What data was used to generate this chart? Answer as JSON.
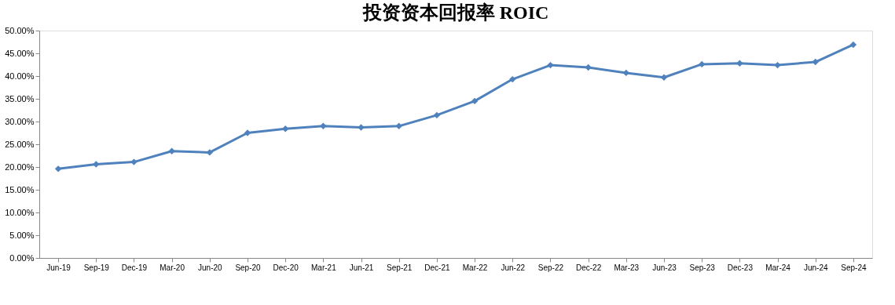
{
  "chart_data": {
    "type": "line",
    "title": "投资资本回报率 ROIC",
    "categories": [
      "Jun-19",
      "Sep-19",
      "Dec-19",
      "Mar-20",
      "Jun-20",
      "Sep-20",
      "Dec-20",
      "Mar-21",
      "Jun-21",
      "Sep-21",
      "Dec-21",
      "Mar-22",
      "Jun-22",
      "Sep-22",
      "Dec-22",
      "Mar-23",
      "Jun-23",
      "Sep-23",
      "Dec-23",
      "Mar-24",
      "Jun-24",
      "Sep-24"
    ],
    "series": [
      {
        "color": "#4f81bd",
        "values": [
          19.6,
          20.6,
          21.1,
          23.5,
          23.2,
          27.5,
          28.4,
          29.0,
          28.7,
          29.0,
          31.4,
          34.5,
          39.3,
          42.4,
          41.9,
          40.7,
          39.7,
          42.6,
          42.8,
          42.4,
          43.1,
          46.9
        ]
      }
    ],
    "ylim": [
      0,
      50
    ],
    "yticks": [
      {
        "value": 0,
        "label": "0.00%"
      },
      {
        "value": 5,
        "label": "5.00%"
      },
      {
        "value": 10,
        "label": "10.00%"
      },
      {
        "value": 15,
        "label": "15.00%"
      },
      {
        "value": 20,
        "label": "20.00%"
      },
      {
        "value": 25,
        "label": "25.00%"
      },
      {
        "value": 30,
        "label": "30.00%"
      },
      {
        "value": 35,
        "label": "35.00%"
      },
      {
        "value": 40,
        "label": "40.00%"
      },
      {
        "value": 45,
        "label": "45.00%"
      },
      {
        "value": 50,
        "label": "50.00%"
      }
    ],
    "grid": false,
    "legend": false,
    "marker": "diamond",
    "line_style": "solid"
  }
}
